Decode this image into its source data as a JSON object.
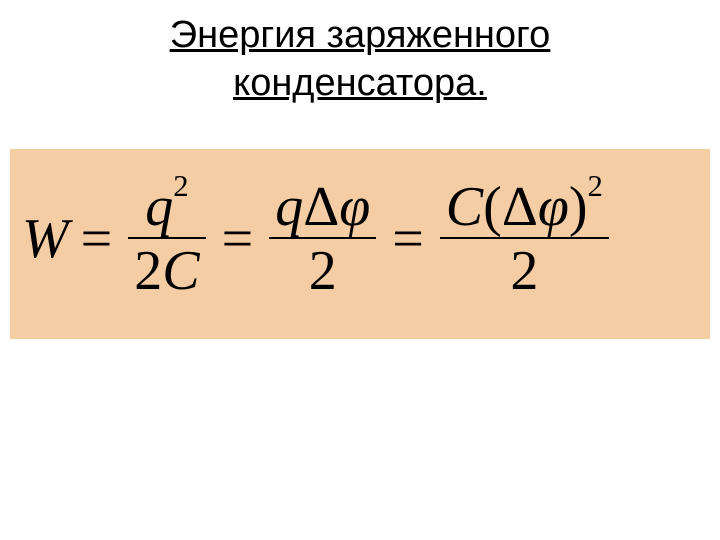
{
  "title": {
    "line1": "Энергия заряженного",
    "line2": "конденсатора",
    "trailing": "."
  },
  "formula": {
    "W": "W",
    "eq": "=",
    "q": "q",
    "exp2": "2",
    "two": "2",
    "C": "C",
    "delta": "Δ",
    "phi": "φ",
    "lparen": "(",
    "rparen": ")"
  },
  "colors": {
    "formula_bg": "#f4cda4",
    "text": "#000000",
    "page_bg": "#ffffff"
  },
  "typography": {
    "title_fontsize": 38,
    "formula_fontsize": 56,
    "title_font": "Arial",
    "formula_font": "Times New Roman"
  }
}
